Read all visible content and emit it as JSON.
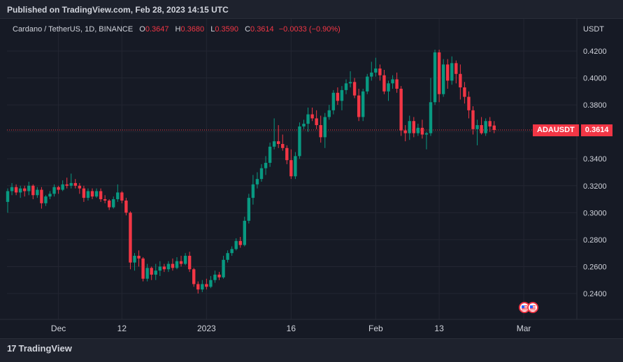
{
  "publish": {
    "text": "Published on TradingView.com, Feb 28, 2023 14:15 UTC"
  },
  "legend": {
    "symbol": "Cardano / TetherUS, 1D, BINANCE",
    "o_label": "O",
    "o": "0.3647",
    "h_label": "H",
    "h": "0.3680",
    "l_label": "L",
    "l": "0.3590",
    "c_label": "C",
    "c": "0.3614",
    "change": "−0.0033 (−0.90%)"
  },
  "currency": "USDT",
  "price_tag": {
    "ticker": "ADAUSDT",
    "price": "0.3614"
  },
  "footer": {
    "brand": "TradingView",
    "logo_glyph": "17"
  },
  "colors": {
    "up": "#089981",
    "down": "#f23645",
    "grid": "#232632",
    "bg": "#161a25"
  },
  "chart_data": {
    "type": "candlestick",
    "ylim": [
      0.228,
      0.432
    ],
    "y_ticks": [
      "0.4200",
      "0.4000",
      "0.3800",
      "0.3600",
      "0.3400",
      "0.3200",
      "0.3000",
      "0.2800",
      "0.2600",
      "0.2400"
    ],
    "x_ticks": [
      {
        "label": "Dec",
        "idx": 12
      },
      {
        "label": "12",
        "idx": 27
      },
      {
        "label": "2023",
        "idx": 47
      },
      {
        "label": "16",
        "idx": 67
      },
      {
        "label": "Feb",
        "idx": 87
      },
      {
        "label": "13",
        "idx": 102
      },
      {
        "label": "Mar",
        "idx": 122
      }
    ],
    "last_price": 0.3614,
    "candles": [
      [
        0.308,
        0.318,
        0.3,
        0.316
      ],
      [
        0.316,
        0.322,
        0.313,
        0.319
      ],
      [
        0.319,
        0.321,
        0.313,
        0.315
      ],
      [
        0.315,
        0.32,
        0.311,
        0.318
      ],
      [
        0.318,
        0.32,
        0.312,
        0.316
      ],
      [
        0.316,
        0.323,
        0.313,
        0.32
      ],
      [
        0.32,
        0.321,
        0.31,
        0.313
      ],
      [
        0.313,
        0.319,
        0.311,
        0.317
      ],
      [
        0.317,
        0.319,
        0.303,
        0.307
      ],
      [
        0.307,
        0.313,
        0.305,
        0.312
      ],
      [
        0.312,
        0.316,
        0.31,
        0.314
      ],
      [
        0.314,
        0.321,
        0.312,
        0.319
      ],
      [
        0.319,
        0.32,
        0.314,
        0.317
      ],
      [
        0.317,
        0.324,
        0.316,
        0.321
      ],
      [
        0.321,
        0.326,
        0.318,
        0.32
      ],
      [
        0.32,
        0.329,
        0.318,
        0.322
      ],
      [
        0.322,
        0.325,
        0.318,
        0.32
      ],
      [
        0.32,
        0.322,
        0.314,
        0.318
      ],
      [
        0.318,
        0.32,
        0.308,
        0.311
      ],
      [
        0.311,
        0.318,
        0.309,
        0.316
      ],
      [
        0.316,
        0.318,
        0.31,
        0.312
      ],
      [
        0.312,
        0.318,
        0.311,
        0.316
      ],
      [
        0.316,
        0.318,
        0.308,
        0.31
      ],
      [
        0.31,
        0.313,
        0.307,
        0.309
      ],
      [
        0.309,
        0.31,
        0.302,
        0.304
      ],
      [
        0.304,
        0.312,
        0.303,
        0.31
      ],
      [
        0.31,
        0.321,
        0.308,
        0.315
      ],
      [
        0.315,
        0.316,
        0.307,
        0.309
      ],
      [
        0.309,
        0.311,
        0.298,
        0.3
      ],
      [
        0.3,
        0.301,
        0.258,
        0.263
      ],
      [
        0.263,
        0.27,
        0.257,
        0.268
      ],
      [
        0.268,
        0.272,
        0.26,
        0.266
      ],
      [
        0.266,
        0.267,
        0.249,
        0.251
      ],
      [
        0.251,
        0.262,
        0.249,
        0.259
      ],
      [
        0.259,
        0.26,
        0.25,
        0.254
      ],
      [
        0.254,
        0.262,
        0.25,
        0.257
      ],
      [
        0.257,
        0.264,
        0.253,
        0.26
      ],
      [
        0.26,
        0.262,
        0.256,
        0.258
      ],
      [
        0.258,
        0.264,
        0.256,
        0.262
      ],
      [
        0.262,
        0.266,
        0.257,
        0.259
      ],
      [
        0.259,
        0.267,
        0.258,
        0.264
      ],
      [
        0.264,
        0.268,
        0.26,
        0.262
      ],
      [
        0.262,
        0.27,
        0.261,
        0.268
      ],
      [
        0.268,
        0.271,
        0.256,
        0.258
      ],
      [
        0.258,
        0.259,
        0.245,
        0.247
      ],
      [
        0.247,
        0.249,
        0.24,
        0.243
      ],
      [
        0.243,
        0.25,
        0.241,
        0.247
      ],
      [
        0.247,
        0.251,
        0.243,
        0.245
      ],
      [
        0.245,
        0.253,
        0.244,
        0.25
      ],
      [
        0.25,
        0.257,
        0.248,
        0.254
      ],
      [
        0.254,
        0.256,
        0.25,
        0.252
      ],
      [
        0.252,
        0.268,
        0.251,
        0.265
      ],
      [
        0.265,
        0.272,
        0.263,
        0.27
      ],
      [
        0.27,
        0.275,
        0.268,
        0.273
      ],
      [
        0.273,
        0.281,
        0.272,
        0.279
      ],
      [
        0.279,
        0.282,
        0.274,
        0.276
      ],
      [
        0.276,
        0.297,
        0.275,
        0.294
      ],
      [
        0.294,
        0.314,
        0.292,
        0.311
      ],
      [
        0.311,
        0.328,
        0.306,
        0.321
      ],
      [
        0.321,
        0.33,
        0.318,
        0.325
      ],
      [
        0.325,
        0.336,
        0.323,
        0.333
      ],
      [
        0.333,
        0.342,
        0.328,
        0.337
      ],
      [
        0.337,
        0.352,
        0.334,
        0.349
      ],
      [
        0.349,
        0.37,
        0.347,
        0.353
      ],
      [
        0.353,
        0.365,
        0.348,
        0.351
      ],
      [
        0.351,
        0.358,
        0.346,
        0.348
      ],
      [
        0.348,
        0.35,
        0.336,
        0.339
      ],
      [
        0.339,
        0.347,
        0.325,
        0.327
      ],
      [
        0.327,
        0.345,
        0.325,
        0.342
      ],
      [
        0.342,
        0.367,
        0.34,
        0.364
      ],
      [
        0.364,
        0.369,
        0.362,
        0.366
      ],
      [
        0.366,
        0.378,
        0.36,
        0.373
      ],
      [
        0.373,
        0.378,
        0.368,
        0.37
      ],
      [
        0.37,
        0.376,
        0.362,
        0.365
      ],
      [
        0.365,
        0.372,
        0.352,
        0.356
      ],
      [
        0.356,
        0.374,
        0.348,
        0.371
      ],
      [
        0.371,
        0.38,
        0.369,
        0.376
      ],
      [
        0.376,
        0.391,
        0.373,
        0.389
      ],
      [
        0.389,
        0.393,
        0.38,
        0.383
      ],
      [
        0.383,
        0.394,
        0.376,
        0.391
      ],
      [
        0.391,
        0.399,
        0.388,
        0.396
      ],
      [
        0.396,
        0.405,
        0.393,
        0.397
      ],
      [
        0.397,
        0.4,
        0.385,
        0.387
      ],
      [
        0.387,
        0.392,
        0.368,
        0.371
      ],
      [
        0.371,
        0.392,
        0.368,
        0.39
      ],
      [
        0.39,
        0.403,
        0.388,
        0.401
      ],
      [
        0.401,
        0.412,
        0.398,
        0.404
      ],
      [
        0.404,
        0.415,
        0.401,
        0.407
      ],
      [
        0.407,
        0.41,
        0.398,
        0.402
      ],
      [
        0.402,
        0.406,
        0.388,
        0.39
      ],
      [
        0.39,
        0.398,
        0.383,
        0.396
      ],
      [
        0.396,
        0.402,
        0.392,
        0.399
      ],
      [
        0.399,
        0.404,
        0.389,
        0.392
      ],
      [
        0.392,
        0.394,
        0.357,
        0.361
      ],
      [
        0.361,
        0.365,
        0.353,
        0.359
      ],
      [
        0.359,
        0.372,
        0.354,
        0.368
      ],
      [
        0.368,
        0.371,
        0.356,
        0.359
      ],
      [
        0.359,
        0.366,
        0.357,
        0.363
      ],
      [
        0.363,
        0.369,
        0.355,
        0.358
      ],
      [
        0.358,
        0.36,
        0.347,
        0.359
      ],
      [
        0.359,
        0.4,
        0.357,
        0.382
      ],
      [
        0.382,
        0.421,
        0.38,
        0.419
      ],
      [
        0.419,
        0.421,
        0.382,
        0.388
      ],
      [
        0.388,
        0.414,
        0.386,
        0.41
      ],
      [
        0.41,
        0.414,
        0.392,
        0.398
      ],
      [
        0.398,
        0.416,
        0.395,
        0.411
      ],
      [
        0.411,
        0.413,
        0.396,
        0.403
      ],
      [
        0.403,
        0.41,
        0.384,
        0.393
      ],
      [
        0.393,
        0.397,
        0.381,
        0.386
      ],
      [
        0.386,
        0.39,
        0.37,
        0.376
      ],
      [
        0.376,
        0.379,
        0.358,
        0.362
      ],
      [
        0.362,
        0.369,
        0.35,
        0.365
      ],
      [
        0.365,
        0.371,
        0.358,
        0.359
      ],
      [
        0.359,
        0.37,
        0.357,
        0.368
      ],
      [
        0.368,
        0.371,
        0.36,
        0.364
      ],
      [
        0.3647,
        0.368,
        0.359,
        0.3614
      ]
    ]
  }
}
